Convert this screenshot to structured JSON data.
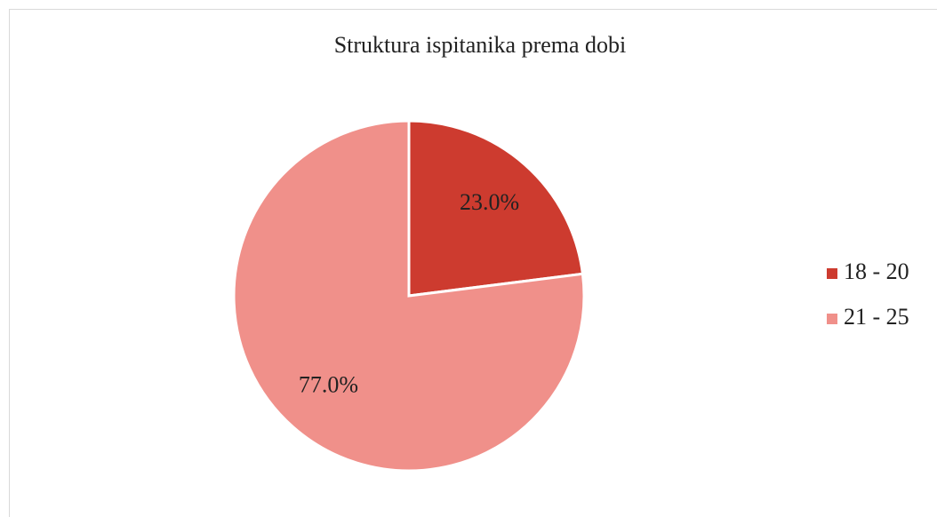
{
  "chart_data": {
    "type": "pie",
    "title": "Struktura ispitanika prema dobi",
    "categories": [
      "18 - 20",
      "21 - 25"
    ],
    "values": [
      23,
      77
    ],
    "value_labels": [
      "23.0%",
      "77.0%"
    ],
    "colors": [
      "#cd3b2f",
      "#f0908a"
    ],
    "legend": "right"
  }
}
